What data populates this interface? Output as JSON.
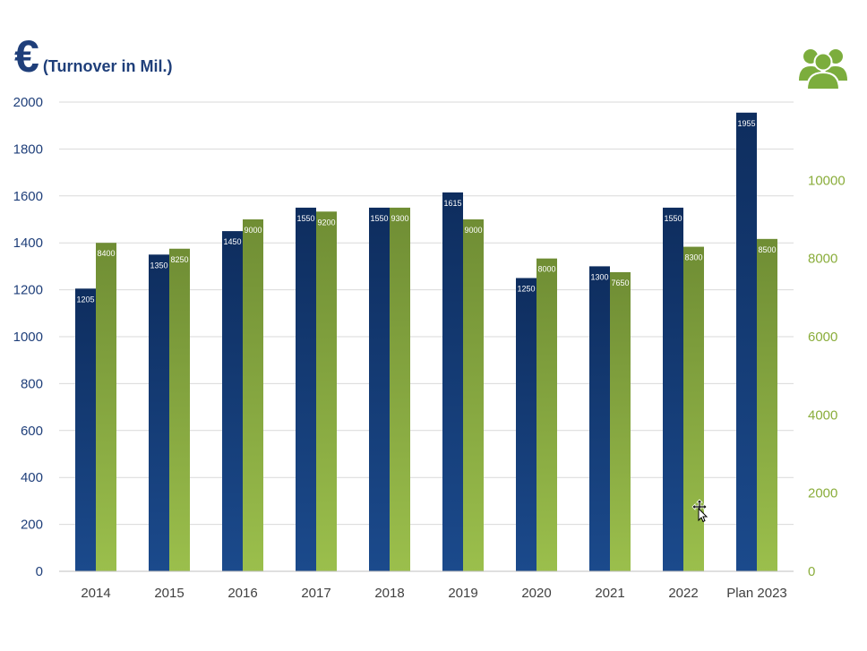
{
  "header": {
    "currency_symbol": "€",
    "subtitle": "(Turnover in Mil.)"
  },
  "icons": {
    "people": "people-group-icon"
  },
  "colors": {
    "turnover_dark": "#0e2d5e",
    "turnover_light": "#1b4a8c",
    "employees_dark": "#6f8d34",
    "employees_light": "#9bbf4c",
    "left_axis_text": "#1f3f7a",
    "right_axis_text": "#8aad3b",
    "grid": "#d9d9d9"
  },
  "chart_data": {
    "type": "bar",
    "categories": [
      "2014",
      "2015",
      "2016",
      "2017",
      "2018",
      "2019",
      "2020",
      "2021",
      "2022",
      "Plan 2023"
    ],
    "series": [
      {
        "axis": "left",
        "values": [
          1205,
          1350,
          1450,
          1550,
          1550,
          1615,
          1250,
          1300,
          1550,
          1955
        ]
      },
      {
        "axis": "right",
        "values": [
          8400,
          8250,
          9000,
          9200,
          9300,
          9000,
          8000,
          7650,
          8300,
          8500
        ]
      }
    ],
    "y_left": {
      "ylim": [
        0,
        2000
      ],
      "ticks": [
        0,
        200,
        400,
        600,
        800,
        1000,
        1200,
        1400,
        1600,
        1800,
        2000
      ]
    },
    "y_right": {
      "ylim": [
        0,
        12000
      ],
      "ticks": [
        0,
        2000,
        4000,
        6000,
        8000,
        10000
      ]
    },
    "grid": true,
    "legend": "none"
  }
}
